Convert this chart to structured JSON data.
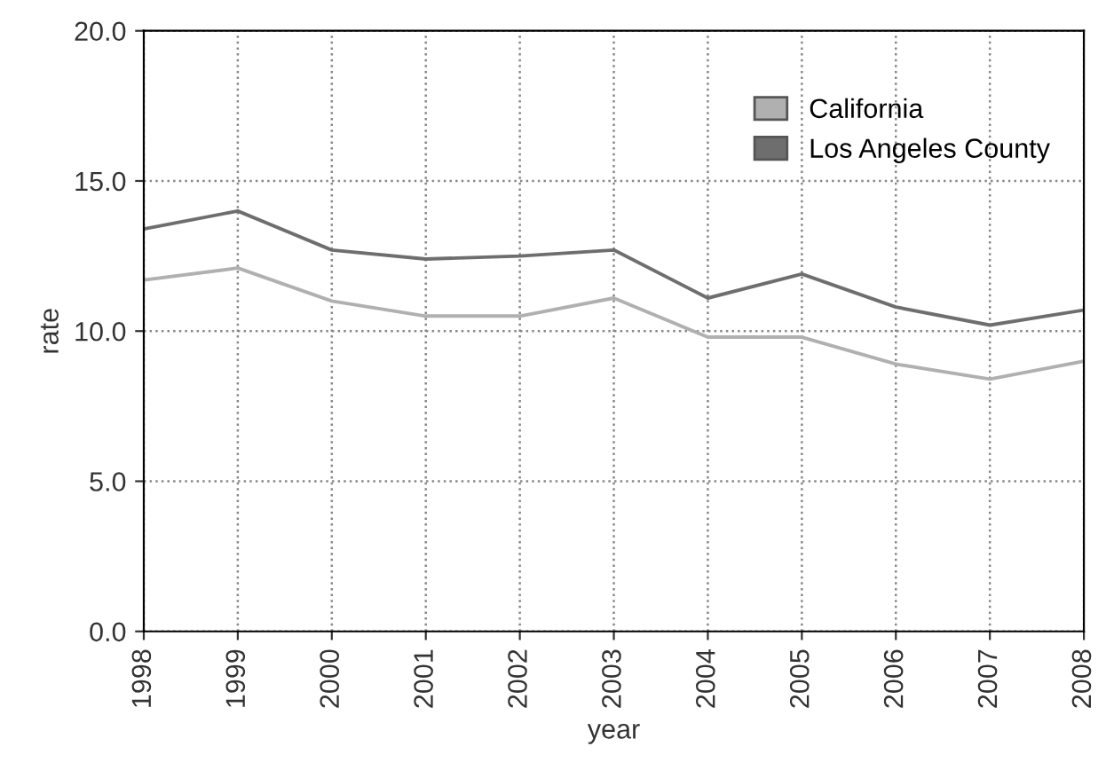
{
  "chart_data": {
    "type": "line",
    "xlabel": "year",
    "ylabel": "rate",
    "x": [
      1998,
      1999,
      2000,
      2001,
      2002,
      2003,
      2004,
      2005,
      2006,
      2007,
      2008
    ],
    "series": [
      {
        "name": "California",
        "color": "#b0b0b0",
        "values": [
          11.7,
          12.1,
          11.0,
          10.5,
          10.5,
          11.1,
          9.8,
          9.8,
          8.9,
          8.4,
          9.0
        ]
      },
      {
        "name": "Los Angeles County",
        "color": "#6e6e6e",
        "values": [
          13.4,
          14.0,
          12.7,
          12.4,
          12.5,
          12.7,
          11.1,
          11.9,
          10.8,
          10.2,
          10.7
        ]
      }
    ],
    "xlim": [
      1998,
      2008
    ],
    "xticks": [
      1998,
      1999,
      2000,
      2001,
      2002,
      2003,
      2004,
      2005,
      2006,
      2007,
      2008
    ],
    "ylim": [
      0,
      20
    ],
    "yticks": [
      {
        "value": 0,
        "label": "0.0"
      },
      {
        "value": 5,
        "label": "5.0"
      },
      {
        "value": 10,
        "label": "10.0"
      },
      {
        "value": 15,
        "label": "15.0"
      },
      {
        "value": 20,
        "label": "20.0"
      }
    ],
    "grid": true,
    "legend": "top right",
    "marker": "none",
    "line_style": "solid"
  }
}
